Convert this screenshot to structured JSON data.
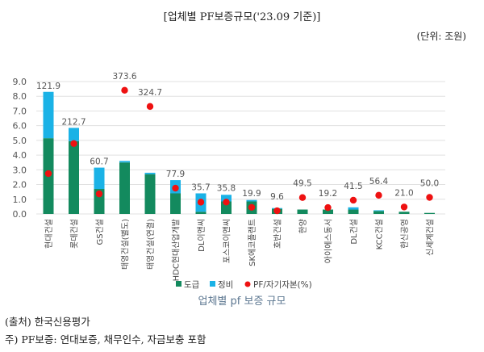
{
  "header": {
    "title": "[업체별 PF보증규모('23.09 기준)]",
    "unit": "(단위: 조원)"
  },
  "chart_data": {
    "type": "bar",
    "stacked": true,
    "categories": [
      "현대건설",
      "롯데건설",
      "GS건설",
      "태영건설(별도)",
      "태영건설(연결)",
      "HDC현대산업개발",
      "DL이앤씨",
      "포스코이앤씨",
      "SK에코플랜트",
      "호반건설",
      "한양",
      "아이에스동서",
      "DL건설",
      "KCC건설",
      "한신공영",
      "신세계건설"
    ],
    "series": [
      {
        "name": "도급",
        "type": "bar",
        "color": "#138a5e",
        "values": [
          5.15,
          4.95,
          1.7,
          3.5,
          2.7,
          1.4,
          0.15,
          0.85,
          0.85,
          0.35,
          0.3,
          0.3,
          0.3,
          0.2,
          0.15,
          0.07
        ]
      },
      {
        "name": "정비",
        "type": "bar",
        "color": "#1ab2e6",
        "values": [
          3.15,
          0.9,
          1.45,
          0.1,
          0.1,
          0.9,
          1.25,
          0.45,
          0.1,
          0.05,
          0,
          0,
          0.15,
          0.05,
          0,
          0
        ]
      },
      {
        "name": "PF/자기자본(%)",
        "type": "scatter",
        "axis": "secondary",
        "color": "#ee1111",
        "values": [
          121.9,
          212.7,
          60.7,
          373.6,
          324.7,
          77.9,
          35.7,
          35.8,
          19.9,
          9.6,
          49.5,
          19.2,
          41.5,
          56.4,
          21.0,
          50.0
        ],
        "labels": [
          "121.9",
          "212.7",
          "60.7",
          "373.6",
          "324.7",
          "77.9",
          "35.7",
          "35.8",
          "19.9",
          "9.6",
          "49.5",
          "19.2",
          "41.5",
          "56.4",
          "21.0",
          "50.0"
        ]
      }
    ],
    "yticks": [
      "0.0",
      "1.0",
      "2.0",
      "3.0",
      "4.0",
      "5.0",
      "6.0",
      "7.0",
      "8.0",
      "9.0"
    ],
    "ylim": [
      0,
      9
    ],
    "y2lim": [
      0,
      400
    ],
    "grid": true,
    "legend": "bottom"
  },
  "caption": "업체별 pf 보증 규모",
  "source": [
    "(출처) 한국신용평가",
    "주) PF보증: 연대보증, 채무인수, 자금보충 포함"
  ]
}
